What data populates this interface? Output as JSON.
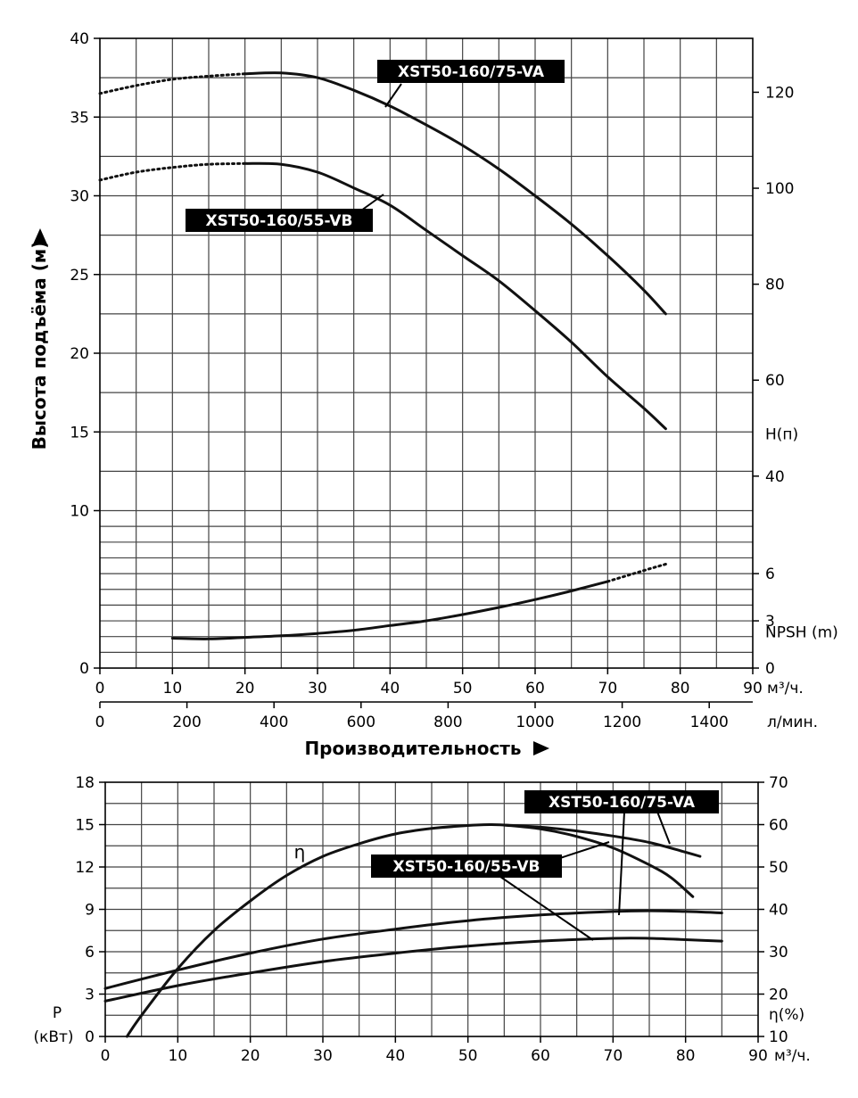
{
  "chart_data": [
    {
      "type": "line",
      "title": "",
      "xlabel": "Производительность",
      "ylabel": "Высота подъёма (м)",
      "x_unit": "м³/ч.",
      "x_secondary_unit": "л/мин.",
      "xlim": [
        0,
        90
      ],
      "ylim": [
        0,
        40
      ],
      "x_ticks": [
        0,
        10,
        20,
        30,
        40,
        50,
        60,
        70,
        80,
        90
      ],
      "x_ticks_secondary": [
        0,
        200,
        400,
        600,
        800,
        1000,
        1200,
        1400
      ],
      "y_ticks": [
        0,
        10,
        15,
        20,
        25,
        30,
        35,
        40
      ],
      "y_right_ticks": [
        0,
        40,
        60,
        80,
        100,
        120
      ],
      "y_right_label": "H(п)",
      "npsh_ticks": [
        3,
        6
      ],
      "npsh_label": "NPSH (m)",
      "grid": true,
      "series": [
        {
          "name": "XST50-160/75-VA",
          "x": [
            0,
            5,
            10,
            15,
            20,
            25,
            30,
            35,
            40,
            45,
            50,
            55,
            60,
            65,
            70,
            75,
            78
          ],
          "values": [
            36.5,
            37.0,
            37.4,
            37.6,
            37.75,
            37.8,
            37.5,
            36.7,
            35.7,
            34.5,
            33.2,
            31.7,
            30.0,
            28.2,
            26.2,
            24.0,
            22.5
          ],
          "dotted_until": 20
        },
        {
          "name": "XST50-160/55-VB",
          "x": [
            0,
            5,
            10,
            15,
            20,
            25,
            30,
            35,
            40,
            45,
            50,
            55,
            60,
            65,
            70,
            75,
            78
          ],
          "values": [
            31.0,
            31.5,
            31.8,
            32.0,
            32.05,
            32.0,
            31.5,
            30.5,
            29.4,
            27.8,
            26.2,
            24.6,
            22.7,
            20.7,
            18.5,
            16.5,
            15.2
          ],
          "dotted_until": 20
        },
        {
          "name": "NPSH",
          "x": [
            10,
            15,
            20,
            25,
            30,
            35,
            40,
            45,
            50,
            55,
            60,
            65,
            70,
            75,
            78
          ],
          "values": [
            1.9,
            1.85,
            1.95,
            2.05,
            2.2,
            2.4,
            2.7,
            3.0,
            3.4,
            3.85,
            4.35,
            4.9,
            5.5,
            6.2,
            6.6
          ],
          "dotted_from": 70
        }
      ],
      "labels": [
        "XST50-160/75-VA",
        "XST50-160/55-VB"
      ]
    },
    {
      "type": "line",
      "title": "",
      "xlabel": "",
      "ylabel": "P (кВт)",
      "x_unit": "м³/ч.",
      "xlim": [
        0,
        90
      ],
      "ylim": [
        0,
        18
      ],
      "x_ticks": [
        0,
        10,
        20,
        30,
        40,
        50,
        60,
        70,
        80,
        90
      ],
      "y_ticks": [
        0,
        3,
        6,
        9,
        12,
        15,
        18
      ],
      "y_right_ticks": [
        10,
        20,
        30,
        40,
        50,
        60,
        70
      ],
      "y_right_label": "η(%)",
      "y_right_lim": [
        10,
        70
      ],
      "grid": true,
      "series": [
        {
          "name": "XST50-160/75-VA",
          "kind": "power",
          "x": [
            0,
            10,
            20,
            30,
            40,
            50,
            60,
            70,
            75,
            80,
            85
          ],
          "values": [
            3.4,
            4.7,
            5.9,
            6.9,
            7.6,
            8.2,
            8.6,
            8.85,
            8.9,
            8.85,
            8.75
          ]
        },
        {
          "name": "XST50-160/55-VB",
          "kind": "power",
          "x": [
            0,
            10,
            20,
            30,
            40,
            50,
            60,
            70,
            75,
            80,
            85
          ],
          "values": [
            2.5,
            3.6,
            4.5,
            5.3,
            5.9,
            6.4,
            6.75,
            6.95,
            6.95,
            6.85,
            6.75
          ]
        },
        {
          "name": "η XST50-160/75-VA",
          "kind": "efficiency",
          "x": [
            3,
            5,
            10,
            15,
            20,
            25,
            30,
            35,
            40,
            45,
            50,
            53,
            55,
            60,
            65,
            70,
            75,
            80,
            82
          ],
          "values": [
            10,
            15,
            26,
            35,
            42,
            48,
            52.5,
            55.5,
            57.8,
            59.1,
            59.8,
            60,
            59.9,
            59.4,
            58.5,
            57.3,
            55.8,
            53.5,
            52.5
          ]
        },
        {
          "name": "η XST50-160/55-VB",
          "kind": "efficiency",
          "x": [
            55,
            60,
            65,
            70,
            75,
            78,
            81
          ],
          "values": [
            59.9,
            59.0,
            57.2,
            54.5,
            50.5,
            47.5,
            43.0
          ]
        }
      ],
      "labels": [
        "XST50-160/75-VA",
        "XST50-160/55-VB",
        "η"
      ]
    }
  ]
}
